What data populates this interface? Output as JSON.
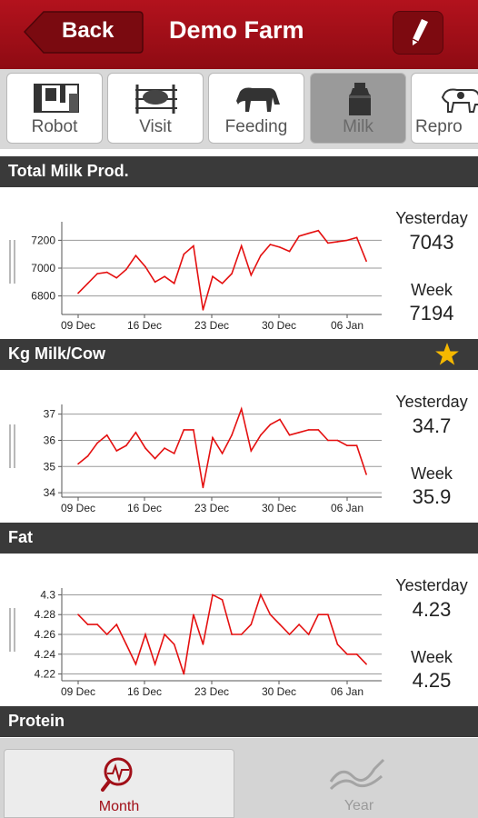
{
  "header": {
    "back_label": "Back",
    "title": "Demo Farm"
  },
  "tabs": [
    {
      "label": "Robot",
      "icon": "robot-icon"
    },
    {
      "label": "Visit",
      "icon": "visit-cow-icon"
    },
    {
      "label": "Feeding",
      "icon": "feeding-cow-icon"
    },
    {
      "label": "Milk",
      "icon": "milk-can-icon",
      "active": true
    },
    {
      "label": "Repro",
      "icon": "repro-cow-icon"
    }
  ],
  "sections": {
    "total_milk": {
      "title": "Total Milk Prod.",
      "yesterday_label": "Yesterday",
      "yesterday_value": "7043",
      "week_label": "Week",
      "week_value": "7194"
    },
    "kg_milk_cow": {
      "title": "Kg Milk/Cow",
      "yesterday_label": "Yesterday",
      "yesterday_value": "34.7",
      "week_label": "Week",
      "week_value": "35.9"
    },
    "fat": {
      "title": "Fat",
      "yesterday_label": "Yesterday",
      "yesterday_value": "4.23",
      "week_label": "Week",
      "week_value": "4.25"
    },
    "protein": {
      "title": "Protein"
    }
  },
  "bottom_tabs": [
    {
      "label": "Month",
      "icon": "month-chart-icon",
      "active": true
    },
    {
      "label": "Year",
      "icon": "year-chart-icon",
      "active": false
    }
  ],
  "colors": {
    "brand_red": "#a10f18",
    "line_red": "#e41010",
    "star": "#f5b800"
  },
  "chart_data": [
    {
      "type": "line",
      "x_ticks": [
        "09 Dec",
        "16 Dec",
        "23 Dec",
        "30 Dec",
        "06 Jan"
      ],
      "x": [
        "09 Dec",
        "10 Dec",
        "11 Dec",
        "12 Dec",
        "13 Dec",
        "14 Dec",
        "15 Dec",
        "16 Dec",
        "17 Dec",
        "18 Dec",
        "19 Dec",
        "20 Dec",
        "21 Dec",
        "22 Dec",
        "23 Dec",
        "24 Dec",
        "25 Dec",
        "26 Dec",
        "27 Dec",
        "28 Dec",
        "29 Dec",
        "30 Dec",
        "31 Dec",
        "01 Jan",
        "02 Jan",
        "03 Jan",
        "04 Jan",
        "05 Jan",
        "06 Jan",
        "07 Jan",
        "08 Jan"
      ],
      "values": [
        6820,
        6890,
        6960,
        6970,
        6930,
        6990,
        7090,
        7010,
        6900,
        6940,
        6890,
        7100,
        7160,
        6700,
        6940,
        6890,
        6960,
        7160,
        6950,
        7090,
        7170,
        7150,
        7120,
        7230,
        7250,
        7270,
        7180,
        7190,
        7200,
        7220,
        7050
      ],
      "y_ticks": [
        6800,
        7000,
        7200
      ],
      "ylim": [
        6680,
        7320
      ],
      "grid": true
    },
    {
      "type": "line",
      "x_ticks": [
        "09 Dec",
        "16 Dec",
        "23 Dec",
        "30 Dec",
        "06 Jan"
      ],
      "x": [
        "09 Dec",
        "10 Dec",
        "11 Dec",
        "12 Dec",
        "13 Dec",
        "14 Dec",
        "15 Dec",
        "16 Dec",
        "17 Dec",
        "18 Dec",
        "19 Dec",
        "20 Dec",
        "21 Dec",
        "22 Dec",
        "23 Dec",
        "24 Dec",
        "25 Dec",
        "26 Dec",
        "27 Dec",
        "28 Dec",
        "29 Dec",
        "30 Dec",
        "31 Dec",
        "01 Jan",
        "02 Jan",
        "03 Jan",
        "04 Jan",
        "05 Jan",
        "06 Jan",
        "07 Jan",
        "08 Jan"
      ],
      "values": [
        35.1,
        35.4,
        35.9,
        36.2,
        35.6,
        35.8,
        36.3,
        35.7,
        35.3,
        35.7,
        35.5,
        36.4,
        36.4,
        34.2,
        36.1,
        35.5,
        36.2,
        37.2,
        35.6,
        36.2,
        36.6,
        36.8,
        36.2,
        36.3,
        36.4,
        36.4,
        36.0,
        36.0,
        35.8,
        35.8,
        34.7
      ],
      "y_ticks": [
        34,
        35,
        36,
        37
      ],
      "ylim": [
        33.9,
        37.3
      ],
      "grid": true
    },
    {
      "type": "line",
      "x_ticks": [
        "09 Dec",
        "16 Dec",
        "23 Dec",
        "30 Dec",
        "06 Jan"
      ],
      "x": [
        "09 Dec",
        "10 Dec",
        "11 Dec",
        "12 Dec",
        "13 Dec",
        "14 Dec",
        "15 Dec",
        "16 Dec",
        "17 Dec",
        "18 Dec",
        "19 Dec",
        "20 Dec",
        "21 Dec",
        "22 Dec",
        "23 Dec",
        "24 Dec",
        "25 Dec",
        "26 Dec",
        "27 Dec",
        "28 Dec",
        "29 Dec",
        "30 Dec",
        "31 Dec",
        "01 Jan",
        "02 Jan",
        "03 Jan",
        "04 Jan",
        "05 Jan",
        "06 Jan",
        "07 Jan",
        "08 Jan"
      ],
      "values": [
        4.28,
        4.27,
        4.27,
        4.26,
        4.27,
        4.25,
        4.23,
        4.26,
        4.23,
        4.26,
        4.25,
        4.22,
        4.28,
        4.25,
        4.3,
        4.295,
        4.26,
        4.26,
        4.27,
        4.3,
        4.28,
        4.27,
        4.26,
        4.27,
        4.26,
        4.28,
        4.28,
        4.25,
        4.24,
        4.24,
        4.23
      ],
      "y_ticks": [
        4.22,
        4.24,
        4.26,
        4.28,
        4.3
      ],
      "ylim": [
        4.215,
        4.305
      ],
      "grid": true
    }
  ]
}
